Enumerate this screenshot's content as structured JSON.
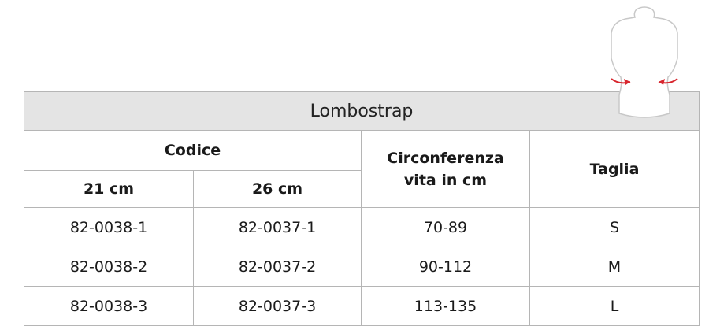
{
  "table": {
    "title": "Lombostrap",
    "headers": {
      "codice": "Codice",
      "code_21": "21 cm",
      "code_26": "26 cm",
      "circonferenza_line1": "Circonferenza",
      "circonferenza_line2": "vita in cm",
      "taglia": "Taglia"
    },
    "rows": [
      {
        "code_21": "82-0038-1",
        "code_26": "82-0037-1",
        "circonferenza": "70-89",
        "taglia": "S"
      },
      {
        "code_21": "82-0038-2",
        "code_26": "82-0037-2",
        "circonferenza": "90-112",
        "taglia": "M"
      },
      {
        "code_21": "82-0038-3",
        "code_26": "82-0037-3",
        "circonferenza": "113-135",
        "taglia": "L"
      }
    ]
  },
  "illustration": {
    "icon": "torso-waist-measurement-icon",
    "arrow_color": "#d8262e",
    "outline_color": "#c8c8c8"
  }
}
